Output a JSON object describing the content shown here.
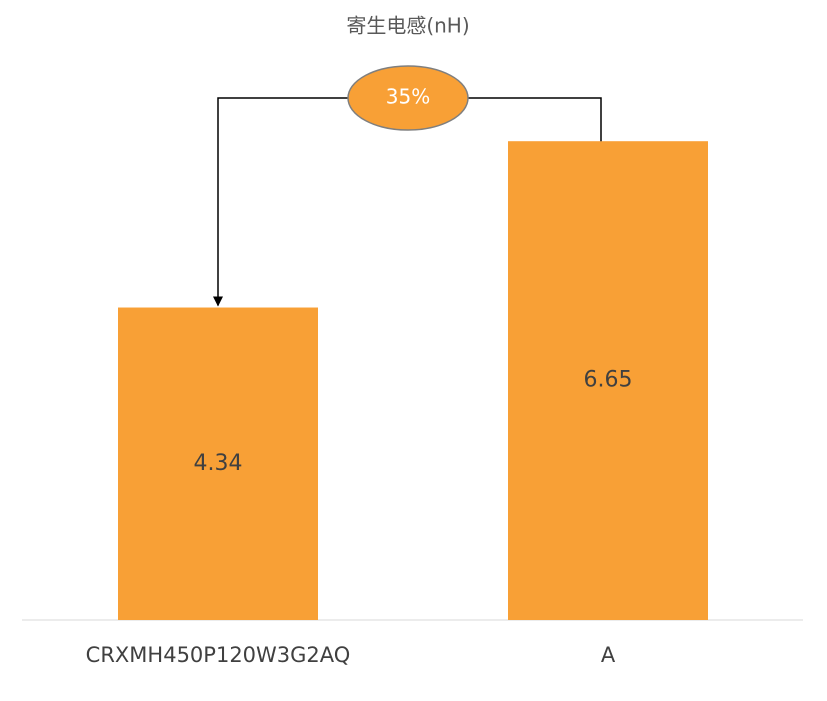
{
  "chart_data": {
    "type": "bar",
    "title": "寄生电感(nH)",
    "categories": [
      "CRXMH450P120W3G2AQ",
      "A"
    ],
    "values": [
      4.34,
      6.65
    ],
    "color": "#f8a036",
    "annotation": "35%"
  }
}
